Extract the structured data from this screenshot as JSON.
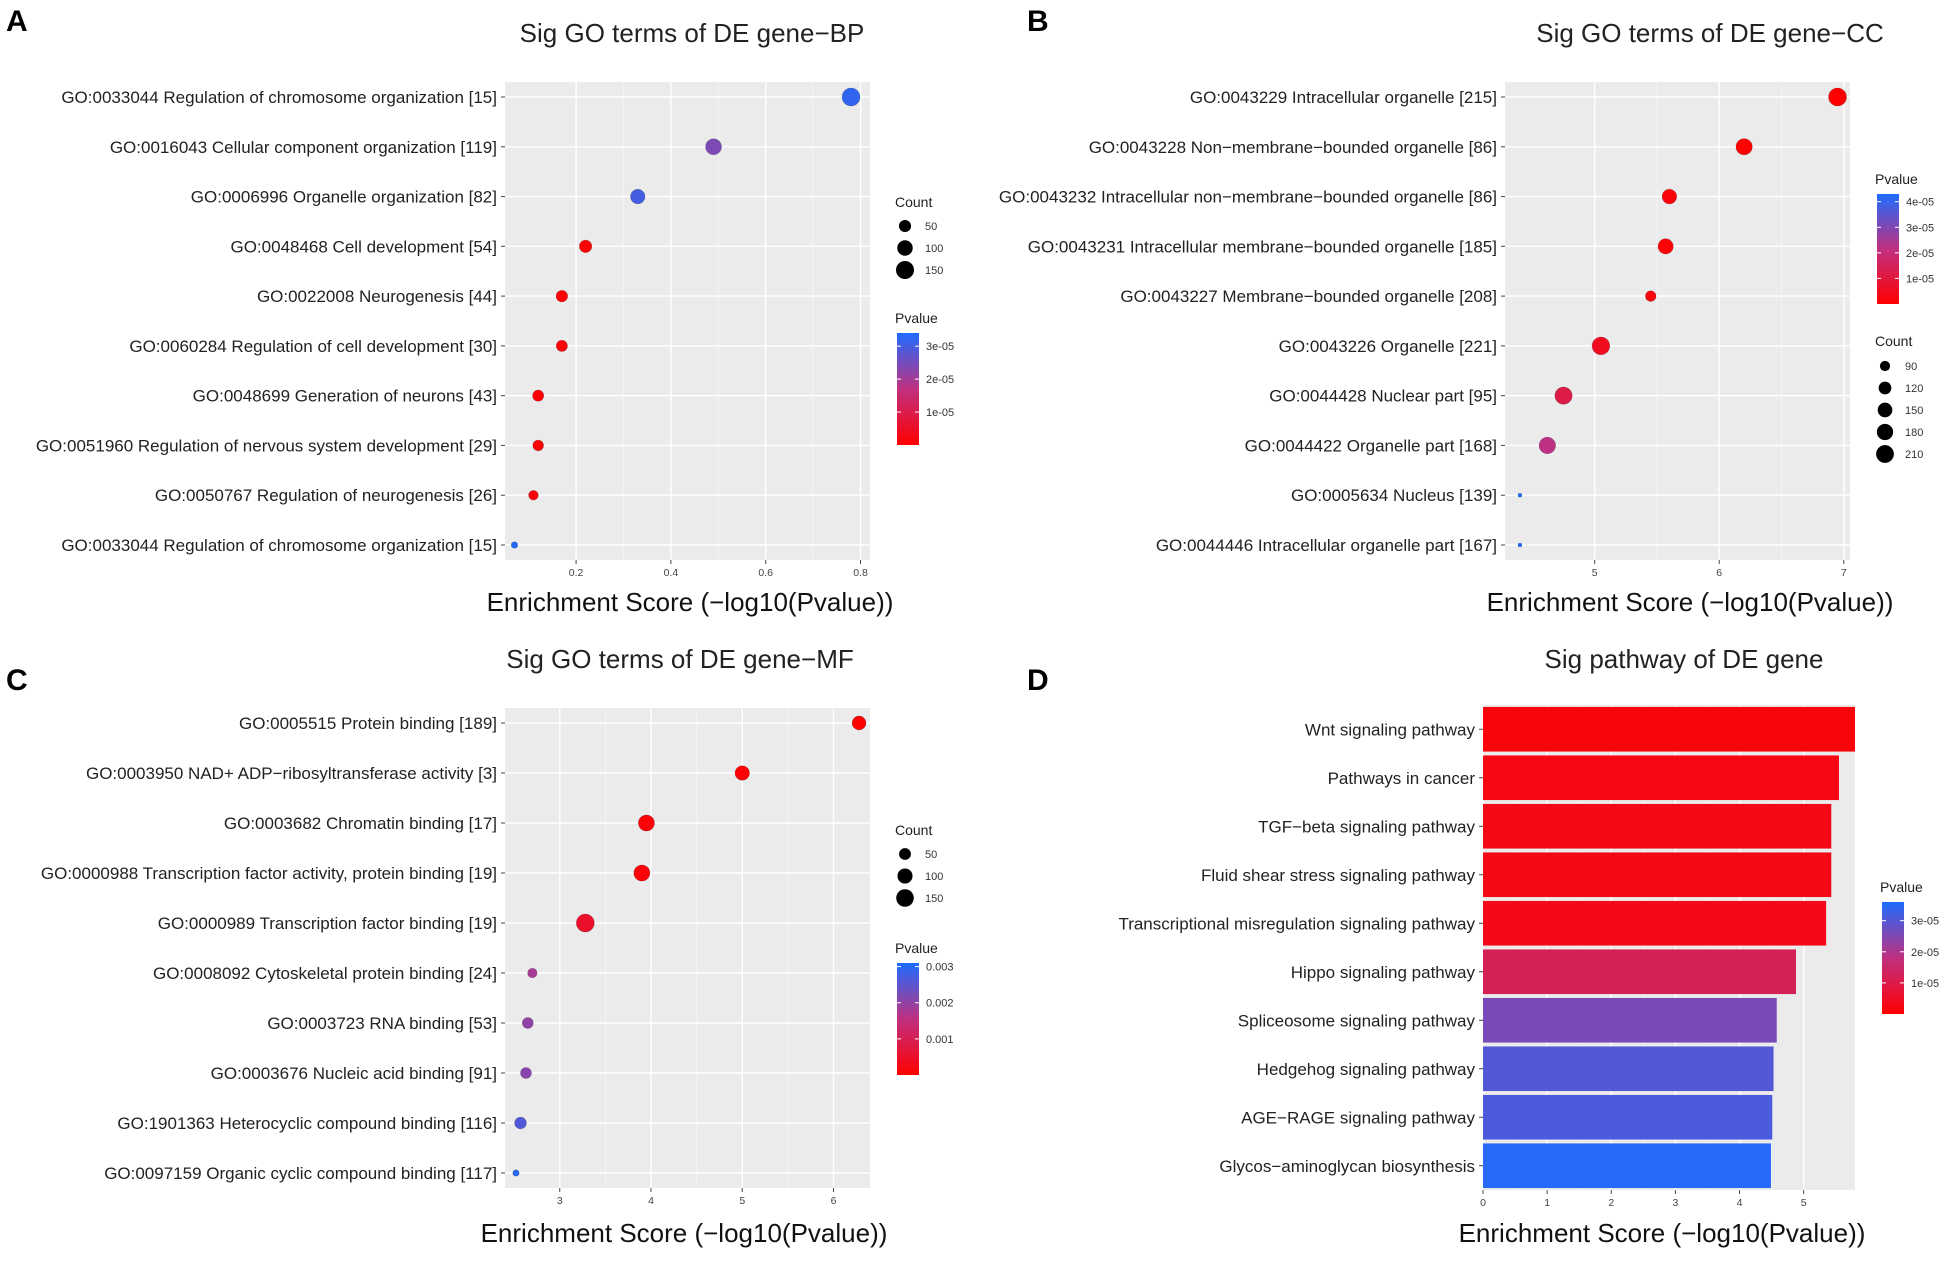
{
  "chart_data": [
    {
      "type": "scatter",
      "panel_label": "A",
      "title": "Sig GO terms of DE gene−BP",
      "xlabel": "Enrichment Score (−log10(Pvalue))",
      "xlim": [
        0.05,
        0.82
      ],
      "xticks": [
        0.2,
        0.4,
        0.6,
        0.8
      ],
      "xtick_labels": [
        "0.2",
        "0.4",
        "0.6",
        "0.8"
      ],
      "terms": [
        {
          "label": "GO:0033044 Regulation of chromosome organization [15]",
          "score": 0.78,
          "count": 150,
          "pvalue": 3.2e-05
        },
        {
          "label": "GO:0016043 Cellular component organization [119]",
          "score": 0.49,
          "count": 110,
          "pvalue": 2.4e-05
        },
        {
          "label": "GO:0006996 Organelle organization [82]",
          "score": 0.33,
          "count": 85,
          "pvalue": 3e-05
        },
        {
          "label": "GO:0048468 Cell development [54]",
          "score": 0.22,
          "count": 55,
          "pvalue": 5e-07
        },
        {
          "label": "GO:0022008 Neurogenesis [44]",
          "score": 0.17,
          "count": 44,
          "pvalue": 5e-07
        },
        {
          "label": "GO:0060284 Regulation of cell development [30]",
          "score": 0.17,
          "count": 40,
          "pvalue": 5e-07
        },
        {
          "label": "GO:0048699 Generation of neurons [43]",
          "score": 0.12,
          "count": 40,
          "pvalue": 5e-07
        },
        {
          "label": "GO:0051960 Regulation of nervous system development [29]",
          "score": 0.12,
          "count": 35,
          "pvalue": 5e-07
        },
        {
          "label": "GO:0050767 Regulation of neurogenesis [26]",
          "score": 0.11,
          "count": 25,
          "pvalue": 1e-06
        },
        {
          "label": "GO:0033044 Regulation of chromosome organization [15]",
          "score": 0.07,
          "count": 5,
          "pvalue": 3.3e-05
        }
      ],
      "count_legend": {
        "title": "Count",
        "values": [
          50,
          100,
          150
        ],
        "labels": [
          "50",
          "100",
          "150"
        ],
        "domain": [
          0,
          150
        ]
      },
      "pvalue_legend": {
        "title": "Pvalue",
        "range": [
          0,
          3.4e-05
        ],
        "ticks": [
          1e-05,
          2e-05,
          3e-05
        ],
        "tick_labels": [
          "1e-05",
          "2e-05",
          "3e-05"
        ],
        "low_color": "#ff0000",
        "high_color": "#1e6cff"
      }
    },
    {
      "type": "scatter",
      "panel_label": "B",
      "title": "Sig GO terms of DE gene−CC",
      "xlabel": "Enrichment Score (−log10(Pvalue))",
      "xlim": [
        4.28,
        7.05
      ],
      "xticks": [
        5,
        6,
        7
      ],
      "xtick_labels": [
        "5",
        "6",
        "7"
      ],
      "terms": [
        {
          "label": "GO:0043229 Intracellular organelle [215]",
          "score": 6.95,
          "count": 215,
          "pvalue": 1e-07
        },
        {
          "label": "GO:0043228 Non−membrane−bounded organelle [86]",
          "score": 6.2,
          "count": 180,
          "pvalue": 3e-07
        },
        {
          "label": "GO:0043232 Intracellular non−membrane−bounded organelle [86]",
          "score": 5.6,
          "count": 150,
          "pvalue": 1.5e-06
        },
        {
          "label": "GO:0043231 Intracellular membrane−bounded organelle [185]",
          "score": 5.57,
          "count": 160,
          "pvalue": 1.5e-06
        },
        {
          "label": "GO:0043227 Membrane−bounded organelle [208]",
          "score": 5.45,
          "count": 95,
          "pvalue": 2e-06
        },
        {
          "label": "GO:0043226 Organelle [221]",
          "score": 5.05,
          "count": 210,
          "pvalue": 5e-06
        },
        {
          "label": "GO:0044428 Nuclear part [95]",
          "score": 4.75,
          "count": 200,
          "pvalue": 1.2e-05
        },
        {
          "label": "GO:0044422 Organelle part [168]",
          "score": 4.62,
          "count": 185,
          "pvalue": 2.2e-05
        },
        {
          "label": "GO:0005634 Nucleus [139]",
          "score": 4.4,
          "count": 60,
          "pvalue": 4.2e-05
        },
        {
          "label": "GO:0044446 Intracellular organelle part [167]",
          "score": 4.4,
          "count": 60,
          "pvalue": 4.2e-05
        }
      ],
      "count_legend": {
        "title": "Count",
        "values": [
          90,
          120,
          150,
          180,
          210
        ],
        "labels": [
          "90",
          "120",
          "150",
          "180",
          "210"
        ],
        "domain": [
          60,
          215
        ]
      },
      "pvalue_legend": {
        "title": "Pvalue",
        "range": [
          0,
          4.3e-05
        ],
        "ticks": [
          1e-05,
          2e-05,
          3e-05,
          4e-05
        ],
        "tick_labels": [
          "1e-05",
          "2e-05",
          "3e-05",
          "4e-05"
        ],
        "low_color": "#ff0000",
        "high_color": "#1e6cff"
      }
    },
    {
      "type": "scatter",
      "panel_label": "C",
      "title": "Sig GO terms of DE gene−MF",
      "xlabel": "Enrichment Score (−log10(Pvalue))",
      "xlim": [
        2.4,
        6.4
      ],
      "xticks": [
        3,
        4,
        5,
        6
      ],
      "xtick_labels": [
        "3",
        "4",
        "5",
        "6"
      ],
      "terms": [
        {
          "label": "GO:0005515 Protein binding [189]",
          "score": 6.28,
          "count": 80,
          "pvalue": 2e-05
        },
        {
          "label": "GO:0003950 NAD+ ADP−ribosyltransferase activity [3]",
          "score": 5.0,
          "count": 90,
          "pvalue": 5e-05
        },
        {
          "label": "GO:0003682 Chromatin binding [17]",
          "score": 3.95,
          "count": 120,
          "pvalue": 0.0001
        },
        {
          "label": "GO:0000988 Transcription factor activity, protein binding [19]",
          "score": 3.9,
          "count": 120,
          "pvalue": 0.0001
        },
        {
          "label": "GO:0000989 Transcription factor binding [19]",
          "score": 3.28,
          "count": 160,
          "pvalue": 0.0005
        },
        {
          "label": "GO:0008092 Cytoskeletal protein binding [24]",
          "score": 2.7,
          "count": 25,
          "pvalue": 0.0018
        },
        {
          "label": "GO:0003723 RNA binding [53]",
          "score": 2.65,
          "count": 40,
          "pvalue": 0.002
        },
        {
          "label": "GO:0003676 Nucleic acid binding [91]",
          "score": 2.63,
          "count": 40,
          "pvalue": 0.0021
        },
        {
          "label": "GO:1901363 Heterocyclic compound binding [116]",
          "score": 2.57,
          "count": 50,
          "pvalue": 0.0026
        },
        {
          "label": "GO:0097159 Organic cyclic compound binding [117]",
          "score": 2.52,
          "count": 5,
          "pvalue": 0.003
        }
      ],
      "count_legend": {
        "title": "Count",
        "values": [
          50,
          100,
          150
        ],
        "labels": [
          "50",
          "100",
          "150"
        ],
        "domain": [
          0,
          160
        ]
      },
      "pvalue_legend": {
        "title": "Pvalue",
        "range": [
          0,
          0.0031
        ],
        "ticks": [
          0.001,
          0.002,
          0.003
        ],
        "tick_labels": [
          "0.001",
          "0.002",
          "0.003"
        ],
        "low_color": "#ff0000",
        "high_color": "#1e6cff"
      }
    },
    {
      "type": "bar",
      "orientation": "horizontal",
      "panel_label": "D",
      "title": "Sig pathway of DE gene",
      "xlabel": "Enrichment Score (−log10(Pvalue))",
      "xlim": [
        0,
        5.8
      ],
      "xticks": [
        0,
        1,
        2,
        3,
        4,
        5
      ],
      "xtick_labels": [
        "0",
        "1",
        "2",
        "3",
        "4",
        "5"
      ],
      "categories": [
        "Wnt signaling pathway",
        "Pathways in cancer",
        "TGF−beta signaling pathway",
        "Fluid shear stress signaling pathway",
        "Transcriptional misregulation signaling pathway",
        "Hippo signaling pathway",
        "Spliceosome signaling pathway",
        "Hedgehog signaling pathway",
        "AGE−RAGE signaling pathway",
        "Glycos−aminoglycan biosynthesis"
      ],
      "values": [
        5.8,
        5.55,
        5.43,
        5.43,
        5.35,
        4.88,
        4.58,
        4.53,
        4.51,
        4.49
      ],
      "pvalues": [
        1.5e-06,
        2.5e-06,
        3e-06,
        3e-06,
        3.5e-06,
        1.2e-05,
        2.6e-05,
        3e-05,
        3.1e-05,
        3.5e-05
      ],
      "pvalue_legend": {
        "title": "Pvalue",
        "range": [
          0,
          3.6e-05
        ],
        "ticks": [
          1e-05,
          2e-05,
          3e-05
        ],
        "tick_labels": [
          "1e-05",
          "2e-05",
          "3e-05"
        ],
        "low_color": "#ff0000",
        "high_color": "#1e6cff"
      }
    }
  ]
}
